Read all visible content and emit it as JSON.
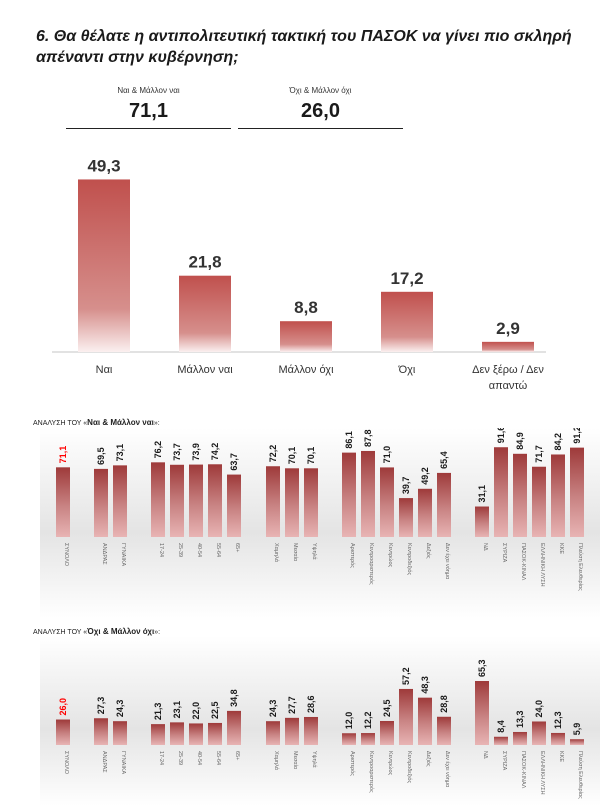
{
  "title": "6. Θα θέλατε η αντιπολιτευτική τακτική του ΠΑΣΟΚ να γίνει πιο σκληρή απέναντι στην κυβέρνηση;",
  "summary": {
    "yes": {
      "label": "Ναι & Μάλλον ναι",
      "value": "71,1"
    },
    "no": {
      "label": "Όχι & Μάλλον όχι",
      "value": "26,0"
    }
  },
  "colors": {
    "main_bar_top": "#c0504d",
    "main_bar_bottom": "#fbeeee",
    "breakdown_bar_top": "#9e3a3a",
    "breakdown_bar_bottom": "#e8b4b4",
    "total_label": "#ff0000",
    "label_text": "#333333"
  },
  "chart_data": [
    {
      "type": "bar",
      "title": "",
      "categories": [
        "Ναι",
        "Μάλλον ναι",
        "Μάλλον όχι",
        "Όχι",
        "Δεν ξέρω / Δεν απαντώ"
      ],
      "values": [
        49.3,
        21.8,
        8.8,
        17.2,
        2.9
      ],
      "value_labels": [
        "49,3",
        "21,8",
        "8,8",
        "17,2",
        "2,9"
      ],
      "xlabel": "",
      "ylabel": "",
      "ylim": [
        0,
        55
      ],
      "grid": false,
      "legend": "none"
    },
    {
      "type": "bar",
      "title_prefix": "ΑΝΑΛΥΣΗ ΤΟΥ «",
      "title_bold": "Ναι & Μάλλον ναι",
      "title_suffix": "»:",
      "groups": [
        {
          "categories": [
            "ΣΥΝΟΛΟ"
          ],
          "values": [
            71.1
          ],
          "value_labels": [
            "71,1"
          ],
          "highlight": true
        },
        {
          "categories": [
            "ΑΝΔΡΑΣ",
            "ΓΥΝΑΙΚΑ"
          ],
          "values": [
            69.5,
            73.1
          ],
          "value_labels": [
            "69,5",
            "73,1"
          ]
        },
        {
          "categories": [
            "17-24",
            "25-39",
            "40-54",
            "55-64",
            "65+"
          ],
          "values": [
            76.2,
            73.7,
            73.9,
            74.2,
            63.7
          ],
          "value_labels": [
            "76,2",
            "73,7",
            "73,9",
            "74,2",
            "63,7"
          ]
        },
        {
          "categories": [
            "Χαμηλά",
            "Μεσαία",
            "Υψηλά"
          ],
          "values": [
            72.2,
            70.1,
            70.1
          ],
          "value_labels": [
            "72,2",
            "70,1",
            "70,1"
          ]
        },
        {
          "categories": [
            "Αριστερός",
            "Κεντροαριστερός",
            "Κεντρώος",
            "Κεντροδεξιός",
            "Δεξιός",
            "Δεν έχει νόημα"
          ],
          "values": [
            86.1,
            87.8,
            71.0,
            39.7,
            49.2,
            65.4
          ],
          "value_labels": [
            "86,1",
            "87,8",
            "71,0",
            "39,7",
            "49,2",
            "65,4"
          ]
        },
        {
          "categories": [
            "ΝΔ",
            "ΣΥΡΙΖΑ",
            "ΠΑΣΟΚ-ΚΙΝΑΛ",
            "ΕΛΛΗΝΙΚΗ ΛΥΣΗ",
            "ΚΚΕ",
            "Πλεύση Ελευθερίας"
          ],
          "values": [
            31.1,
            91.6,
            84.9,
            71.7,
            84.2,
            91.2
          ],
          "value_labels": [
            "31,1",
            "91,6",
            "84,9",
            "71,7",
            "84,2",
            "91,2"
          ]
        }
      ],
      "ylim": [
        0,
        100
      ],
      "grid": false,
      "legend": "none"
    },
    {
      "type": "bar",
      "title_prefix": "ΑΝΑΛΥΣΗ ΤΟΥ «",
      "title_bold": "Όχι & Μάλλον όχι",
      "title_suffix": "»:",
      "groups": [
        {
          "categories": [
            "ΣΥΝΟΛΟ"
          ],
          "values": [
            26.0
          ],
          "value_labels": [
            "26,0"
          ],
          "highlight": true
        },
        {
          "categories": [
            "ΑΝΔΡΑΣ",
            "ΓΥΝΑΙΚΑ"
          ],
          "values": [
            27.3,
            24.3
          ],
          "value_labels": [
            "27,3",
            "24,3"
          ]
        },
        {
          "categories": [
            "17-24",
            "25-39",
            "40-54",
            "55-64",
            "65+"
          ],
          "values": [
            21.3,
            23.1,
            22.0,
            22.5,
            34.8
          ],
          "value_labels": [
            "21,3",
            "23,1",
            "22,0",
            "22,5",
            "34,8"
          ]
        },
        {
          "categories": [
            "Χαμηλά",
            "Μεσαία",
            "Υψηλά"
          ],
          "values": [
            24.3,
            27.7,
            28.6
          ],
          "value_labels": [
            "24,3",
            "27,7",
            "28,6"
          ]
        },
        {
          "categories": [
            "Αριστερός",
            "Κεντροαριστερός",
            "Κεντρώος",
            "Κεντροδεξιός",
            "Δεξιός",
            "Δεν έχει νόημα"
          ],
          "values": [
            12.0,
            12.2,
            24.5,
            57.2,
            48.3,
            28.8
          ],
          "value_labels": [
            "12,0",
            "12,2",
            "24,5",
            "57,2",
            "48,3",
            "28,8"
          ]
        },
        {
          "categories": [
            "ΝΔ",
            "ΣΥΡΙΖΑ",
            "ΠΑΣΟΚ-ΚΙΝΑΛ",
            "ΕΛΛΗΝΙΚΗ ΛΥΣΗ",
            "ΚΚΕ",
            "Πλεύση Ελευθερίας"
          ],
          "values": [
            65.3,
            8.4,
            13.3,
            24.0,
            12.3,
            5.9
          ],
          "value_labels": [
            "65,3",
            "8,4",
            "13,3",
            "24,0",
            "12,3",
            "5,9"
          ]
        }
      ],
      "ylim": [
        0,
        100
      ],
      "grid": false,
      "legend": "none"
    }
  ]
}
